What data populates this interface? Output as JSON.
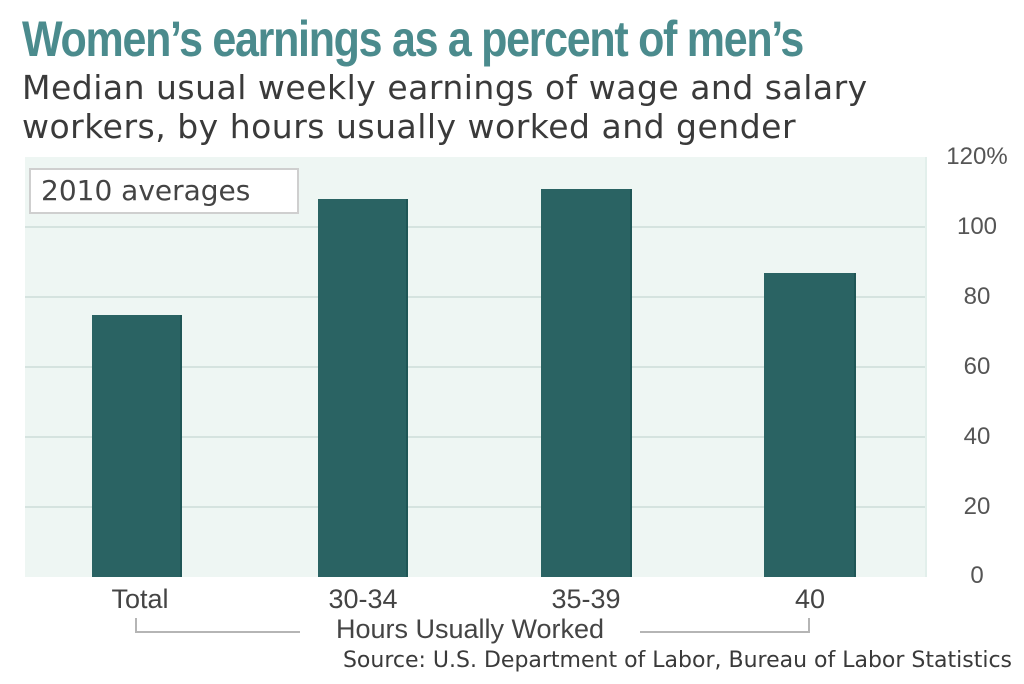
{
  "header": {
    "title": "Women’s earnings as a percent of men’s",
    "subtitle_line1": "Median usual weekly earnings of wage and salary",
    "subtitle_line2": "workers, by hours usually worked and gender"
  },
  "legend": {
    "label": "2010 averages"
  },
  "axis": {
    "y_ticks": [
      "120%",
      "100",
      "80",
      "60",
      "40",
      "20",
      "0"
    ],
    "x_ticks": [
      "Total",
      "30-34",
      "35-39",
      "40"
    ],
    "x_label": "Hours Usually Worked"
  },
  "footer": {
    "source": "Source: U.S. Department of Labor, Bureau of Labor Statistics"
  },
  "colors": {
    "title": "#4b8b8d",
    "bar": "#2a6363",
    "plot_bg": "#eef6f3",
    "grid": "#d5e3df"
  },
  "chart_data": {
    "type": "bar",
    "title": "Women’s earnings as a percent of men’s",
    "subtitle": "Median usual weekly earnings of wage and salary workers, by hours usually worked and gender",
    "categories": [
      "Total",
      "30-34",
      "35-39",
      "40"
    ],
    "series": [
      {
        "name": "2010 averages",
        "values": [
          75,
          108,
          111,
          87
        ]
      }
    ],
    "xlabel": "Hours Usually Worked",
    "ylabel": "",
    "ylim": [
      0,
      120
    ],
    "y_ticks": [
      0,
      20,
      40,
      60,
      80,
      100,
      120
    ],
    "y_unit": "%",
    "y_axis_position": "right",
    "grid": true,
    "legend_position": "top-left",
    "source": "Source: U.S. Department of Labor, Bureau of Labor Statistics"
  }
}
